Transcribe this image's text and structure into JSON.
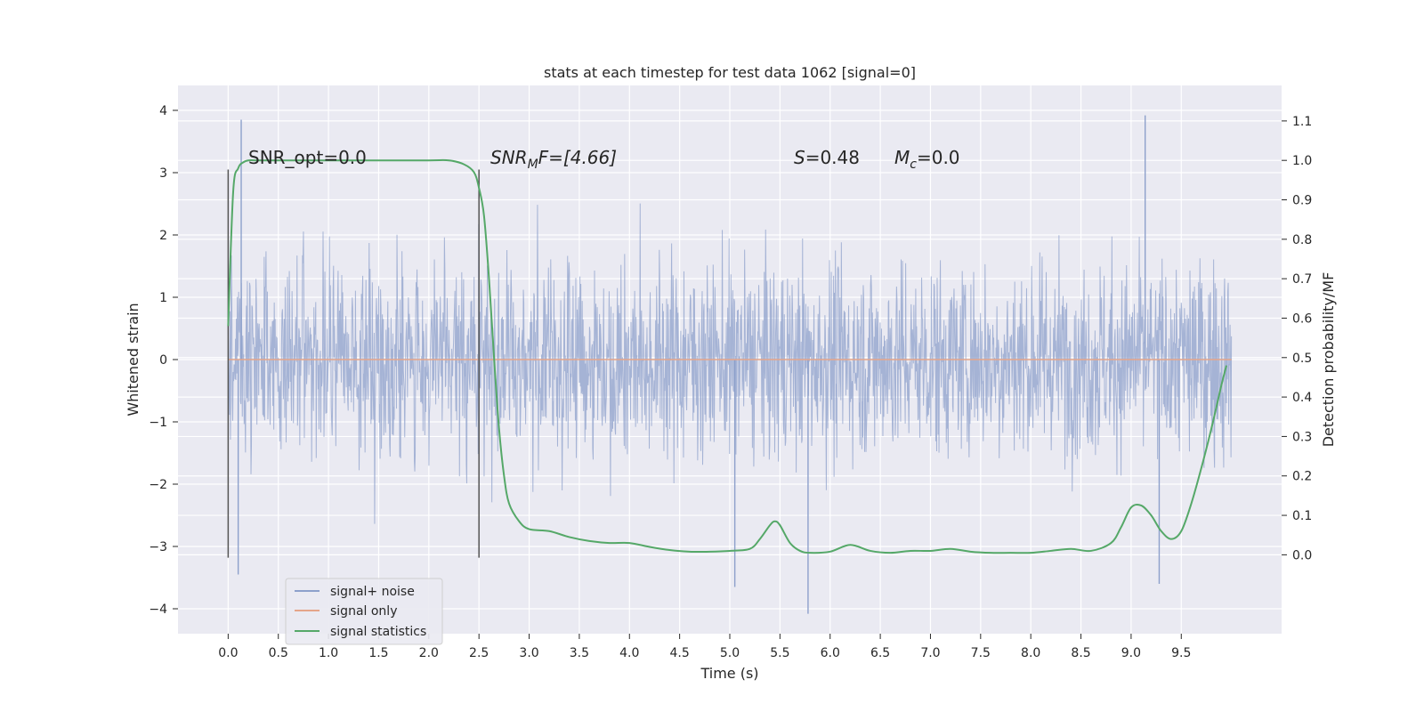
{
  "chart_data": {
    "type": "line",
    "title": "stats at each timestep for test data 1062 [signal=0]",
    "xlabel": "Time (s)",
    "ylabel": "Whitened strain",
    "ylabel_right": "Detection probability/MF",
    "xlim": [
      -0.5,
      10.5
    ],
    "ylim": [
      -4.4,
      4.4
    ],
    "ylim_right": [
      -0.2,
      1.19
    ],
    "x_ticks": [
      "0.0",
      "0.5",
      "1.0",
      "1.5",
      "2.0",
      "2.5",
      "3.0",
      "3.5",
      "4.0",
      "4.5",
      "5.0",
      "5.5",
      "6.0",
      "6.5",
      "7.0",
      "7.5",
      "8.0",
      "8.5",
      "9.0",
      "9.5"
    ],
    "y_ticks": [
      "−4",
      "−3",
      "−2",
      "−1",
      "0",
      "1",
      "2",
      "3",
      "4"
    ],
    "y_ticks_right": [
      "0.0",
      "0.1",
      "0.2",
      "0.3",
      "0.4",
      "0.5",
      "0.6",
      "0.7",
      "0.8",
      "0.9",
      "1.0",
      "1.1"
    ],
    "grid": true,
    "legend_position": "lower-left",
    "annotations": {
      "snr_opt": "SNR_opt=0.0",
      "snr_mf_prefix": "SNR",
      "snr_mf_sub": "M",
      "snr_mf_suffix": "F=[4.66]",
      "s_prefix": "S",
      "s_suffix": "=0.48",
      "mc_prefix": "M",
      "mc_sub": "c",
      "mc_suffix": "=0.0"
    },
    "vertical_markers": [
      0.0,
      2.5
    ],
    "series": [
      {
        "name": "signal+ noise",
        "color": "#8da0cb",
        "axis": "left",
        "description_values": {
          "x_range": [
            0.0,
            10.0
          ],
          "approx_amplitude": 2.6,
          "max_peak": 3.9,
          "min_peak": -4.1
        }
      },
      {
        "name": "signal only",
        "color": "#e5a58a",
        "axis": "left",
        "x": [
          0.0,
          10.0
        ],
        "values": [
          0.0,
          0.0
        ]
      },
      {
        "name": "signal statistics",
        "color": "#55a868",
        "axis": "right",
        "x": [
          0.0,
          0.05,
          0.1,
          0.15,
          0.2,
          0.3,
          0.5,
          1.0,
          1.5,
          2.0,
          2.2,
          2.35,
          2.45,
          2.5,
          2.55,
          2.6,
          2.65,
          2.7,
          2.75,
          2.8,
          2.9,
          3.0,
          3.2,
          3.4,
          3.6,
          3.8,
          4.0,
          4.2,
          4.4,
          4.6,
          4.8,
          5.0,
          5.2,
          5.3,
          5.4,
          5.45,
          5.5,
          5.6,
          5.7,
          5.8,
          6.0,
          6.2,
          6.4,
          6.6,
          6.8,
          7.0,
          7.2,
          7.4,
          7.6,
          7.8,
          8.0,
          8.2,
          8.4,
          8.6,
          8.8,
          8.9,
          9.0,
          9.1,
          9.2,
          9.3,
          9.4,
          9.5,
          9.6,
          9.7,
          9.8,
          9.9,
          9.95
        ],
        "values": [
          0.58,
          0.92,
          0.98,
          0.995,
          1.0,
          1.0,
          1.0,
          1.0,
          1.0,
          1.0,
          1.0,
          0.99,
          0.97,
          0.93,
          0.86,
          0.7,
          0.5,
          0.32,
          0.2,
          0.13,
          0.085,
          0.065,
          0.06,
          0.045,
          0.035,
          0.03,
          0.03,
          0.02,
          0.012,
          0.008,
          0.008,
          0.01,
          0.015,
          0.04,
          0.075,
          0.085,
          0.075,
          0.03,
          0.01,
          0.005,
          0.008,
          0.025,
          0.01,
          0.005,
          0.01,
          0.01,
          0.015,
          0.008,
          0.005,
          0.005,
          0.005,
          0.01,
          0.015,
          0.01,
          0.03,
          0.07,
          0.12,
          0.125,
          0.1,
          0.06,
          0.04,
          0.06,
          0.13,
          0.22,
          0.32,
          0.43,
          0.48
        ]
      }
    ]
  }
}
